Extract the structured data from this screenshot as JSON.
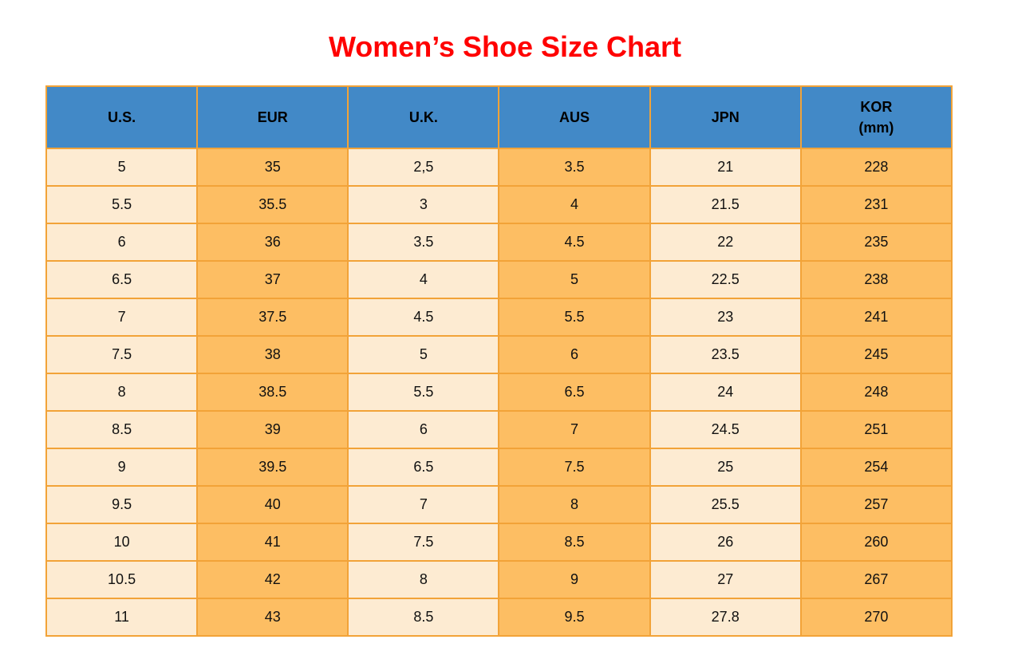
{
  "title": {
    "text": "Women’s Shoe Size Chart"
  },
  "table": {
    "headers": [
      {
        "label": "U.S."
      },
      {
        "label": "EUR"
      },
      {
        "label": "U.K."
      },
      {
        "label": "AUS"
      },
      {
        "label": "JPN"
      },
      {
        "label": "KOR",
        "sub": "(mm)"
      }
    ],
    "rows": [
      [
        "5",
        "35",
        "2,5",
        "3.5",
        "21",
        "228"
      ],
      [
        "5.5",
        "35.5",
        "3",
        "4",
        "21.5",
        "231"
      ],
      [
        "6",
        "36",
        "3.5",
        "4.5",
        "22",
        "235"
      ],
      [
        "6.5",
        "37",
        "4",
        "5",
        "22.5",
        "238"
      ],
      [
        "7",
        "37.5",
        "4.5",
        "5.5",
        "23",
        "241"
      ],
      [
        "7.5",
        "38",
        "5",
        "6",
        "23.5",
        "245"
      ],
      [
        "8",
        "38.5",
        "5.5",
        "6.5",
        "24",
        "248"
      ],
      [
        "8.5",
        "39",
        "6",
        "7",
        "24.5",
        "251"
      ],
      [
        "9",
        "39.5",
        "6.5",
        "7.5",
        "25",
        "254"
      ],
      [
        "9.5",
        "40",
        "7",
        "8",
        "25.5",
        "257"
      ],
      [
        "10",
        "41",
        "7.5",
        "8.5",
        "26",
        "260"
      ],
      [
        "10.5",
        "42",
        "8",
        "9",
        "27",
        "267"
      ],
      [
        "11",
        "43",
        "8.5",
        "9.5",
        "27.8",
        "270"
      ]
    ],
    "colors": {
      "header_bg": "#4289C7",
      "header_text": "#000000",
      "col_light": "#FDEBD2",
      "col_dark": "#FDBE63",
      "border": "#F2A338",
      "title_color": "#FF0000",
      "body_text": "#111111",
      "page_bg": "#FFFFFF"
    }
  },
  "chart_data": {
    "type": "table",
    "title": "Women’s Shoe Size Chart",
    "columns": [
      "U.S.",
      "EUR",
      "U.K.",
      "AUS",
      "JPN",
      "KOR (mm)"
    ],
    "rows": [
      [
        "5",
        "35",
        "2,5",
        "3.5",
        "21",
        "228"
      ],
      [
        "5.5",
        "35.5",
        "3",
        "4",
        "21.5",
        "231"
      ],
      [
        "6",
        "36",
        "3.5",
        "4.5",
        "22",
        "235"
      ],
      [
        "6.5",
        "37",
        "4",
        "5",
        "22.5",
        "238"
      ],
      [
        "7",
        "37.5",
        "4.5",
        "5.5",
        "23",
        "241"
      ],
      [
        "7.5",
        "38",
        "5",
        "6",
        "23.5",
        "245"
      ],
      [
        "8",
        "38.5",
        "5.5",
        "6.5",
        "24",
        "248"
      ],
      [
        "8.5",
        "39",
        "6",
        "7",
        "24.5",
        "251"
      ],
      [
        "9",
        "39.5",
        "6.5",
        "7.5",
        "25",
        "254"
      ],
      [
        "9.5",
        "40",
        "7",
        "8",
        "25.5",
        "257"
      ],
      [
        "10",
        "41",
        "7.5",
        "8.5",
        "26",
        "260"
      ],
      [
        "10.5",
        "42",
        "8",
        "9",
        "27",
        "267"
      ],
      [
        "11",
        "43",
        "8.5",
        "9.5",
        "27.8",
        "270"
      ]
    ],
    "layout": {
      "column_fill_pattern": [
        "light",
        "dark",
        "light",
        "dark",
        "light",
        "dark"
      ],
      "header_style": "blue background, bold black text",
      "grid": "on"
    }
  }
}
